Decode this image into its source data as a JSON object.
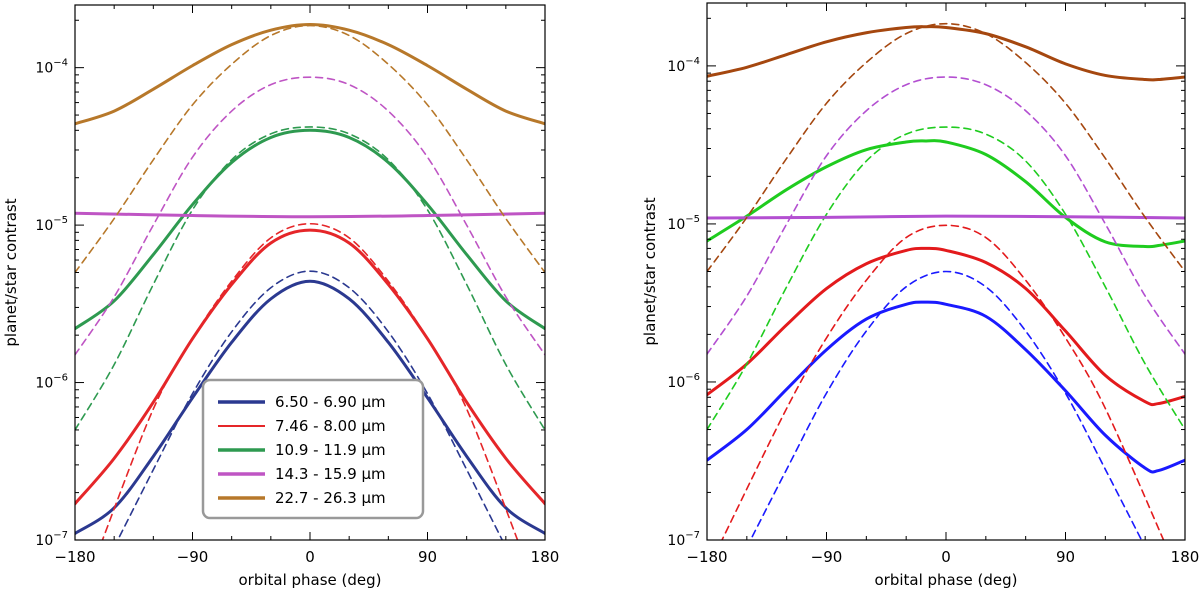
{
  "chart_data": [
    {
      "type": "line",
      "panel": "left",
      "xlabel": "orbital phase (deg)",
      "ylabel": "planet/star contrast",
      "xlim": [
        -180,
        180
      ],
      "ylim": [
        1e-07,
        0.00025
      ],
      "yscale": "log",
      "xticks": [
        -180,
        -90,
        0,
        90,
        180
      ],
      "xtick_labels": [
        "−180",
        "−90",
        "0",
        "90",
        "180"
      ],
      "ytick_labels": [
        {
          "exp": -7,
          "mant": "10",
          "sup": "−7"
        },
        {
          "exp": -6,
          "mant": "10",
          "sup": "−6"
        },
        {
          "exp": -5,
          "mant": "10",
          "sup": "−5"
        },
        {
          "exp": -4,
          "mant": "10",
          "sup": "−4"
        }
      ],
      "legend": {
        "placement": "bottom-center",
        "entries": [
          {
            "label": "6.50 - 6.90 µm",
            "color": "#2b3990"
          },
          {
            "label": "7.46 - 8.00 µm",
            "color": "#e52629"
          },
          {
            "label": "10.9 - 11.9 µm",
            "color": "#2e9a50"
          },
          {
            "label": "14.3 - 15.9 µm",
            "color": "#bf55c4"
          },
          {
            "label": "22.7 - 26.3 µm",
            "color": "#b7782a"
          }
        ]
      },
      "series": [
        {
          "name": "6.50 - 6.90 µm",
          "style": "solid",
          "color": "#2b3990",
          "x": [
            -180,
            -150,
            -120,
            -90,
            -60,
            -30,
            0,
            30,
            60,
            90,
            120,
            150,
            180
          ],
          "y": [
            1.1e-07,
            1.6e-07,
            3.4e-07,
            8e-07,
            1.8e-06,
            3.4e-06,
            4.4e-06,
            3.4e-06,
            1.8e-06,
            8e-07,
            3.4e-07,
            1.6e-07,
            1.1e-07
          ]
        },
        {
          "name": "6.50 - 6.90 µm",
          "style": "dashed",
          "color": "#2b3990",
          "x": [
            -150,
            -120,
            -90,
            -60,
            -30,
            0,
            30,
            60,
            90,
            120,
            150
          ],
          "y": [
            9e-08,
            2.8e-07,
            8.5e-07,
            2.1e-06,
            4e-06,
            5.1e-06,
            4e-06,
            2.1e-06,
            8.5e-07,
            2.8e-07,
            9e-08
          ]
        },
        {
          "name": "7.46 - 8.00 µm",
          "style": "solid",
          "color": "#e52629",
          "x": [
            -180,
            -150,
            -120,
            -90,
            -60,
            -30,
            0,
            30,
            60,
            90,
            120,
            150,
            180
          ],
          "y": [
            1.7e-07,
            3.3e-07,
            7.5e-07,
            1.9e-06,
            4.2e-06,
            7.7e-06,
            9.3e-06,
            7.7e-06,
            4.2e-06,
            1.9e-06,
            7.5e-07,
            3.3e-07,
            1.7e-07
          ]
        },
        {
          "name": "7.46 - 8.00 µm",
          "style": "dashed",
          "color": "#e52629",
          "x": [
            -160,
            -120,
            -90,
            -60,
            -30,
            0,
            30,
            60,
            90,
            120,
            160
          ],
          "y": [
            9.5e-08,
            6.8e-07,
            1.9e-06,
            4.4e-06,
            8.3e-06,
            1.02e-05,
            8.3e-06,
            4.4e-06,
            1.9e-06,
            6.8e-07,
            9.5e-08
          ]
        },
        {
          "name": "10.9 - 11.9 µm",
          "style": "solid",
          "color": "#2e9a50",
          "x": [
            -180,
            -150,
            -120,
            -90,
            -60,
            -30,
            0,
            30,
            60,
            90,
            120,
            150,
            180
          ],
          "y": [
            2.2e-06,
            3.3e-06,
            6.5e-06,
            1.35e-05,
            2.5e-05,
            3.6e-05,
            4e-05,
            3.6e-05,
            2.5e-05,
            1.35e-05,
            6.5e-06,
            3.3e-06,
            2.2e-06
          ]
        },
        {
          "name": "10.9 - 11.9 µm",
          "style": "dashed",
          "color": "#2e9a50",
          "x": [
            -180,
            -150,
            -120,
            -90,
            -60,
            -30,
            0,
            30,
            60,
            90,
            120,
            150,
            180
          ],
          "y": [
            5e-07,
            1.3e-06,
            4.2e-06,
            1.25e-05,
            2.6e-05,
            3.8e-05,
            4.2e-05,
            3.8e-05,
            2.6e-05,
            1.25e-05,
            4.2e-06,
            1.3e-06,
            5e-07
          ]
        },
        {
          "name": "14.3 - 15.9 µm",
          "style": "solid",
          "color": "#bf55c4",
          "x": [
            -180,
            -90,
            0,
            90,
            180
          ],
          "y": [
            1.19e-05,
            1.15e-05,
            1.13e-05,
            1.15e-05,
            1.19e-05
          ]
        },
        {
          "name": "14.3 - 15.9 µm",
          "style": "dashed",
          "color": "#bf55c4",
          "x": [
            -180,
            -150,
            -120,
            -90,
            -60,
            -30,
            0,
            30,
            60,
            90,
            120,
            150,
            180
          ],
          "y": [
            1.5e-06,
            3.5e-06,
            1e-05,
            2.7e-05,
            5.3e-05,
            7.8e-05,
            8.7e-05,
            7.8e-05,
            5.3e-05,
            2.7e-05,
            1e-05,
            3.5e-06,
            1.5e-06
          ]
        },
        {
          "name": "22.7 - 26.3 µm",
          "style": "solid",
          "color": "#b7782a",
          "x": [
            -180,
            -150,
            -120,
            -90,
            -60,
            -30,
            0,
            30,
            60,
            90,
            120,
            150,
            180
          ],
          "y": [
            4.4e-05,
            5.3e-05,
            7.3e-05,
            0.000103,
            0.00014,
            0.000173,
            0.000188,
            0.000173,
            0.00014,
            0.000103,
            7.3e-05,
            5.3e-05,
            4.4e-05
          ]
        },
        {
          "name": "22.7 - 26.3 µm",
          "style": "dashed",
          "color": "#b7782a",
          "x": [
            -180,
            -150,
            -120,
            -90,
            -60,
            -30,
            0,
            30,
            60,
            90,
            120,
            150,
            180
          ],
          "y": [
            5e-06,
            1.1e-05,
            2.6e-05,
            5.8e-05,
            0.000105,
            0.00016,
            0.000185,
            0.00016,
            0.000105,
            5.8e-05,
            2.6e-05,
            1.1e-05,
            5e-06
          ]
        }
      ]
    },
    {
      "type": "line",
      "panel": "right",
      "xlabel": "orbital phase (deg)",
      "ylabel": "planet/star contrast",
      "xlim": [
        -180,
        180
      ],
      "ylim": [
        1e-07,
        0.00025
      ],
      "yscale": "log",
      "xticks": [
        -180,
        -90,
        0,
        90,
        180
      ],
      "xtick_labels": [
        "−180",
        "−90",
        "0",
        "90",
        "180"
      ],
      "ytick_labels": [
        {
          "exp": -7,
          "mant": "10",
          "sup": "−7"
        },
        {
          "exp": -6,
          "mant": "10",
          "sup": "−6"
        },
        {
          "exp": -5,
          "mant": "10",
          "sup": "−5"
        },
        {
          "exp": -4,
          "mant": "10",
          "sup": "−4"
        }
      ],
      "series": [
        {
          "name": "6.50 - 6.90 µm",
          "style": "solid",
          "color": "#1a1aff",
          "x": [
            -180,
            -150,
            -120,
            -90,
            -60,
            -30,
            -15,
            0,
            30,
            60,
            90,
            120,
            150,
            160,
            180
          ],
          "y": [
            3.2e-07,
            5e-07,
            9e-07,
            1.6e-06,
            2.5e-06,
            3.1e-06,
            3.2e-06,
            3.1e-06,
            2.6e-06,
            1.6e-06,
            8.8e-07,
            4.6e-07,
            2.85e-07,
            2.75e-07,
            3.2e-07
          ]
        },
        {
          "name": "6.50 - 6.90 µm",
          "style": "dashed",
          "color": "#1a1aff",
          "x": [
            -150,
            -120,
            -90,
            -60,
            -30,
            0,
            30,
            60,
            90,
            120,
            150
          ],
          "y": [
            9e-08,
            2.8e-07,
            8.5e-07,
            2.1e-06,
            4e-06,
            5e-06,
            4e-06,
            2.1e-06,
            8.5e-07,
            2.8e-07,
            9e-08
          ]
        },
        {
          "name": "7.46 - 8.00 µm",
          "style": "solid",
          "color": "#e31a1c",
          "x": [
            -180,
            -150,
            -120,
            -90,
            -60,
            -30,
            -15,
            0,
            30,
            60,
            90,
            120,
            150,
            160,
            180
          ],
          "y": [
            8.3e-07,
            1.3e-06,
            2.3e-06,
            3.9e-06,
            5.6e-06,
            6.8e-06,
            7e-06,
            6.8e-06,
            5.7e-06,
            3.9e-06,
            2.1e-06,
            1.1e-06,
            7.5e-07,
            7.3e-07,
            8.1e-07
          ]
        },
        {
          "name": "7.46 - 8.00 µm",
          "style": "dashed",
          "color": "#e31a1c",
          "x": [
            -170,
            -120,
            -90,
            -60,
            -30,
            0,
            30,
            60,
            90,
            120,
            165
          ],
          "y": [
            9.5e-08,
            6.8e-07,
            1.9e-06,
            4.4e-06,
            8.2e-06,
            9.8e-06,
            8.2e-06,
            4.4e-06,
            1.9e-06,
            6.8e-07,
            9.5e-08
          ]
        },
        {
          "name": "10.9 - 11.9 µm",
          "style": "solid",
          "color": "#1fcc1f",
          "x": [
            -180,
            -150,
            -120,
            -90,
            -60,
            -30,
            -15,
            0,
            30,
            60,
            90,
            120,
            150,
            160,
            180
          ],
          "y": [
            7.8e-06,
            1.12e-05,
            1.65e-05,
            2.3e-05,
            2.95e-05,
            3.3e-05,
            3.35e-05,
            3.3e-05,
            2.75e-05,
            1.85e-05,
            1.1e-05,
            7.7e-06,
            7.2e-06,
            7.3e-06,
            7.8e-06
          ]
        },
        {
          "name": "10.9 - 11.9 µm",
          "style": "dashed",
          "color": "#1fcc1f",
          "x": [
            -180,
            -150,
            -120,
            -90,
            -60,
            -30,
            0,
            30,
            60,
            90,
            120,
            150,
            180
          ],
          "y": [
            5e-07,
            1.3e-06,
            4e-06,
            1.15e-05,
            2.5e-05,
            3.7e-05,
            4.1e-05,
            3.7e-05,
            2.5e-05,
            1.15e-05,
            4e-06,
            1.3e-06,
            5e-07
          ]
        },
        {
          "name": "14.3 - 15.9 µm",
          "style": "solid",
          "color": "#b34fd1",
          "x": [
            -180,
            -90,
            0,
            90,
            180
          ],
          "y": [
            1.09e-05,
            1.1e-05,
            1.12e-05,
            1.11e-05,
            1.09e-05
          ]
        },
        {
          "name": "14.3 - 15.9 µm",
          "style": "dashed",
          "color": "#b34fd1",
          "x": [
            -180,
            -150,
            -120,
            -90,
            -60,
            -30,
            0,
            30,
            60,
            90,
            120,
            150,
            180
          ],
          "y": [
            1.5e-06,
            3.5e-06,
            1e-05,
            2.7e-05,
            5.2e-05,
            7.6e-05,
            8.5e-05,
            7.6e-05,
            5.2e-05,
            2.7e-05,
            1e-05,
            3.5e-06,
            1.5e-06
          ]
        },
        {
          "name": "22.7 - 26.3 µm",
          "style": "solid",
          "color": "#a5470f",
          "x": [
            -180,
            -150,
            -120,
            -90,
            -60,
            -30,
            -15,
            0,
            30,
            60,
            90,
            120,
            150,
            160,
            180
          ],
          "y": [
            8.6e-05,
            9.8e-05,
            0.000118,
            0.000142,
            0.000162,
            0.000175,
            0.000177,
            0.000175,
            0.00016,
            0.000132,
            0.000103,
            8.7e-05,
            8.2e-05,
            8.2e-05,
            8.5e-05
          ]
        },
        {
          "name": "22.7 - 26.3 µm",
          "style": "dashed",
          "color": "#a5470f",
          "x": [
            -180,
            -150,
            -120,
            -90,
            -60,
            -30,
            0,
            30,
            60,
            90,
            120,
            150,
            180
          ],
          "y": [
            5e-06,
            1.1e-05,
            2.6e-05,
            5.8e-05,
            0.000105,
            0.00016,
            0.000185,
            0.00016,
            0.000105,
            5.8e-05,
            2.6e-05,
            1.1e-05,
            5e-06
          ]
        }
      ]
    }
  ]
}
